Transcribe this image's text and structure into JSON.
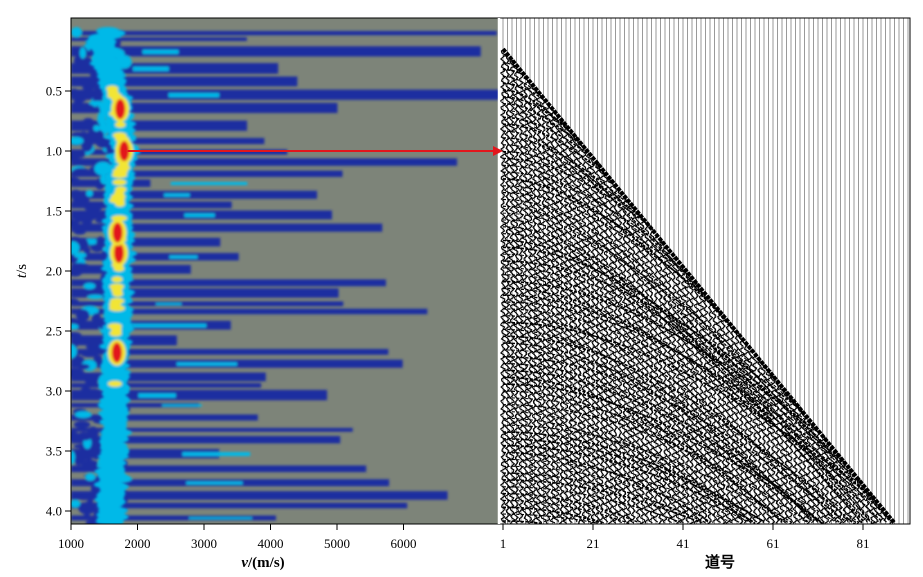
{
  "chart_data": [
    {
      "type": "heatmap",
      "title": "",
      "xlabel": "v/(m/s)",
      "xlabel_parts": {
        "var": "v",
        "unit": "/(m/s)"
      },
      "ylabel": "t/s",
      "ylabel_parts": {
        "var": "t",
        "unit": "/s"
      },
      "xlim": [
        1000,
        7400
      ],
      "ylim": [
        0,
        4.1
      ],
      "xticks": [
        1000,
        2000,
        3000,
        4000,
        5000,
        6000
      ],
      "xtick_labels": [
        "1000",
        "2000",
        "3000",
        "4000",
        "5000",
        "6000"
      ],
      "yticks": [
        0.5,
        1.0,
        1.5,
        2.0,
        2.5,
        3.0,
        3.5,
        4.0
      ],
      "ytick_labels": [
        "0.5",
        "1.0",
        "1.5",
        "2.0",
        "2.5",
        "3.0",
        "3.5",
        "4.0"
      ],
      "colors": {
        "background": "#7d8479",
        "low": "#1e2ea0",
        "mid": "#00b9e8",
        "high_mid": "#f2e534",
        "peak": "#e2161c"
      },
      "peak_ridge": [
        {
          "t": 0.05,
          "v": 1420
        },
        {
          "t": 0.3,
          "v": 1560
        },
        {
          "t": 0.6,
          "v": 1700
        },
        {
          "t": 0.8,
          "v": 1730
        },
        {
          "t": 1.0,
          "v": 1800
        },
        {
          "t": 1.3,
          "v": 1720
        },
        {
          "t": 1.6,
          "v": 1700
        },
        {
          "t": 1.85,
          "v": 1720
        },
        {
          "t": 2.2,
          "v": 1690
        },
        {
          "t": 2.5,
          "v": 1680
        },
        {
          "t": 2.8,
          "v": 1660
        },
        {
          "t": 3.2,
          "v": 1650
        },
        {
          "t": 3.6,
          "v": 1620
        },
        {
          "t": 4.1,
          "v": 1600
        }
      ],
      "peak_blobs": [
        {
          "t": 0.65,
          "v": 1740
        },
        {
          "t": 1.0,
          "v": 1800
        },
        {
          "t": 1.85,
          "v": 1720
        },
        {
          "t": 1.68,
          "v": 1700
        },
        {
          "t": 2.68,
          "v": 1690
        }
      ],
      "marker_arrow": {
        "t": 1.0,
        "color": "#e2161c"
      }
    },
    {
      "type": "scatter",
      "title": "",
      "xlabel": "道号",
      "ylabel": "",
      "xlim": [
        1,
        100
      ],
      "ylim": [
        0,
        4.1
      ],
      "xticks": [
        1,
        21,
        41,
        61,
        81
      ],
      "xtick_labels": [
        "1",
        "21",
        "41",
        "61",
        "81"
      ],
      "first_arrival_line": [
        {
          "trace": 1,
          "t": 0.15
        },
        {
          "trace": 88,
          "t": 4.1
        }
      ]
    }
  ]
}
